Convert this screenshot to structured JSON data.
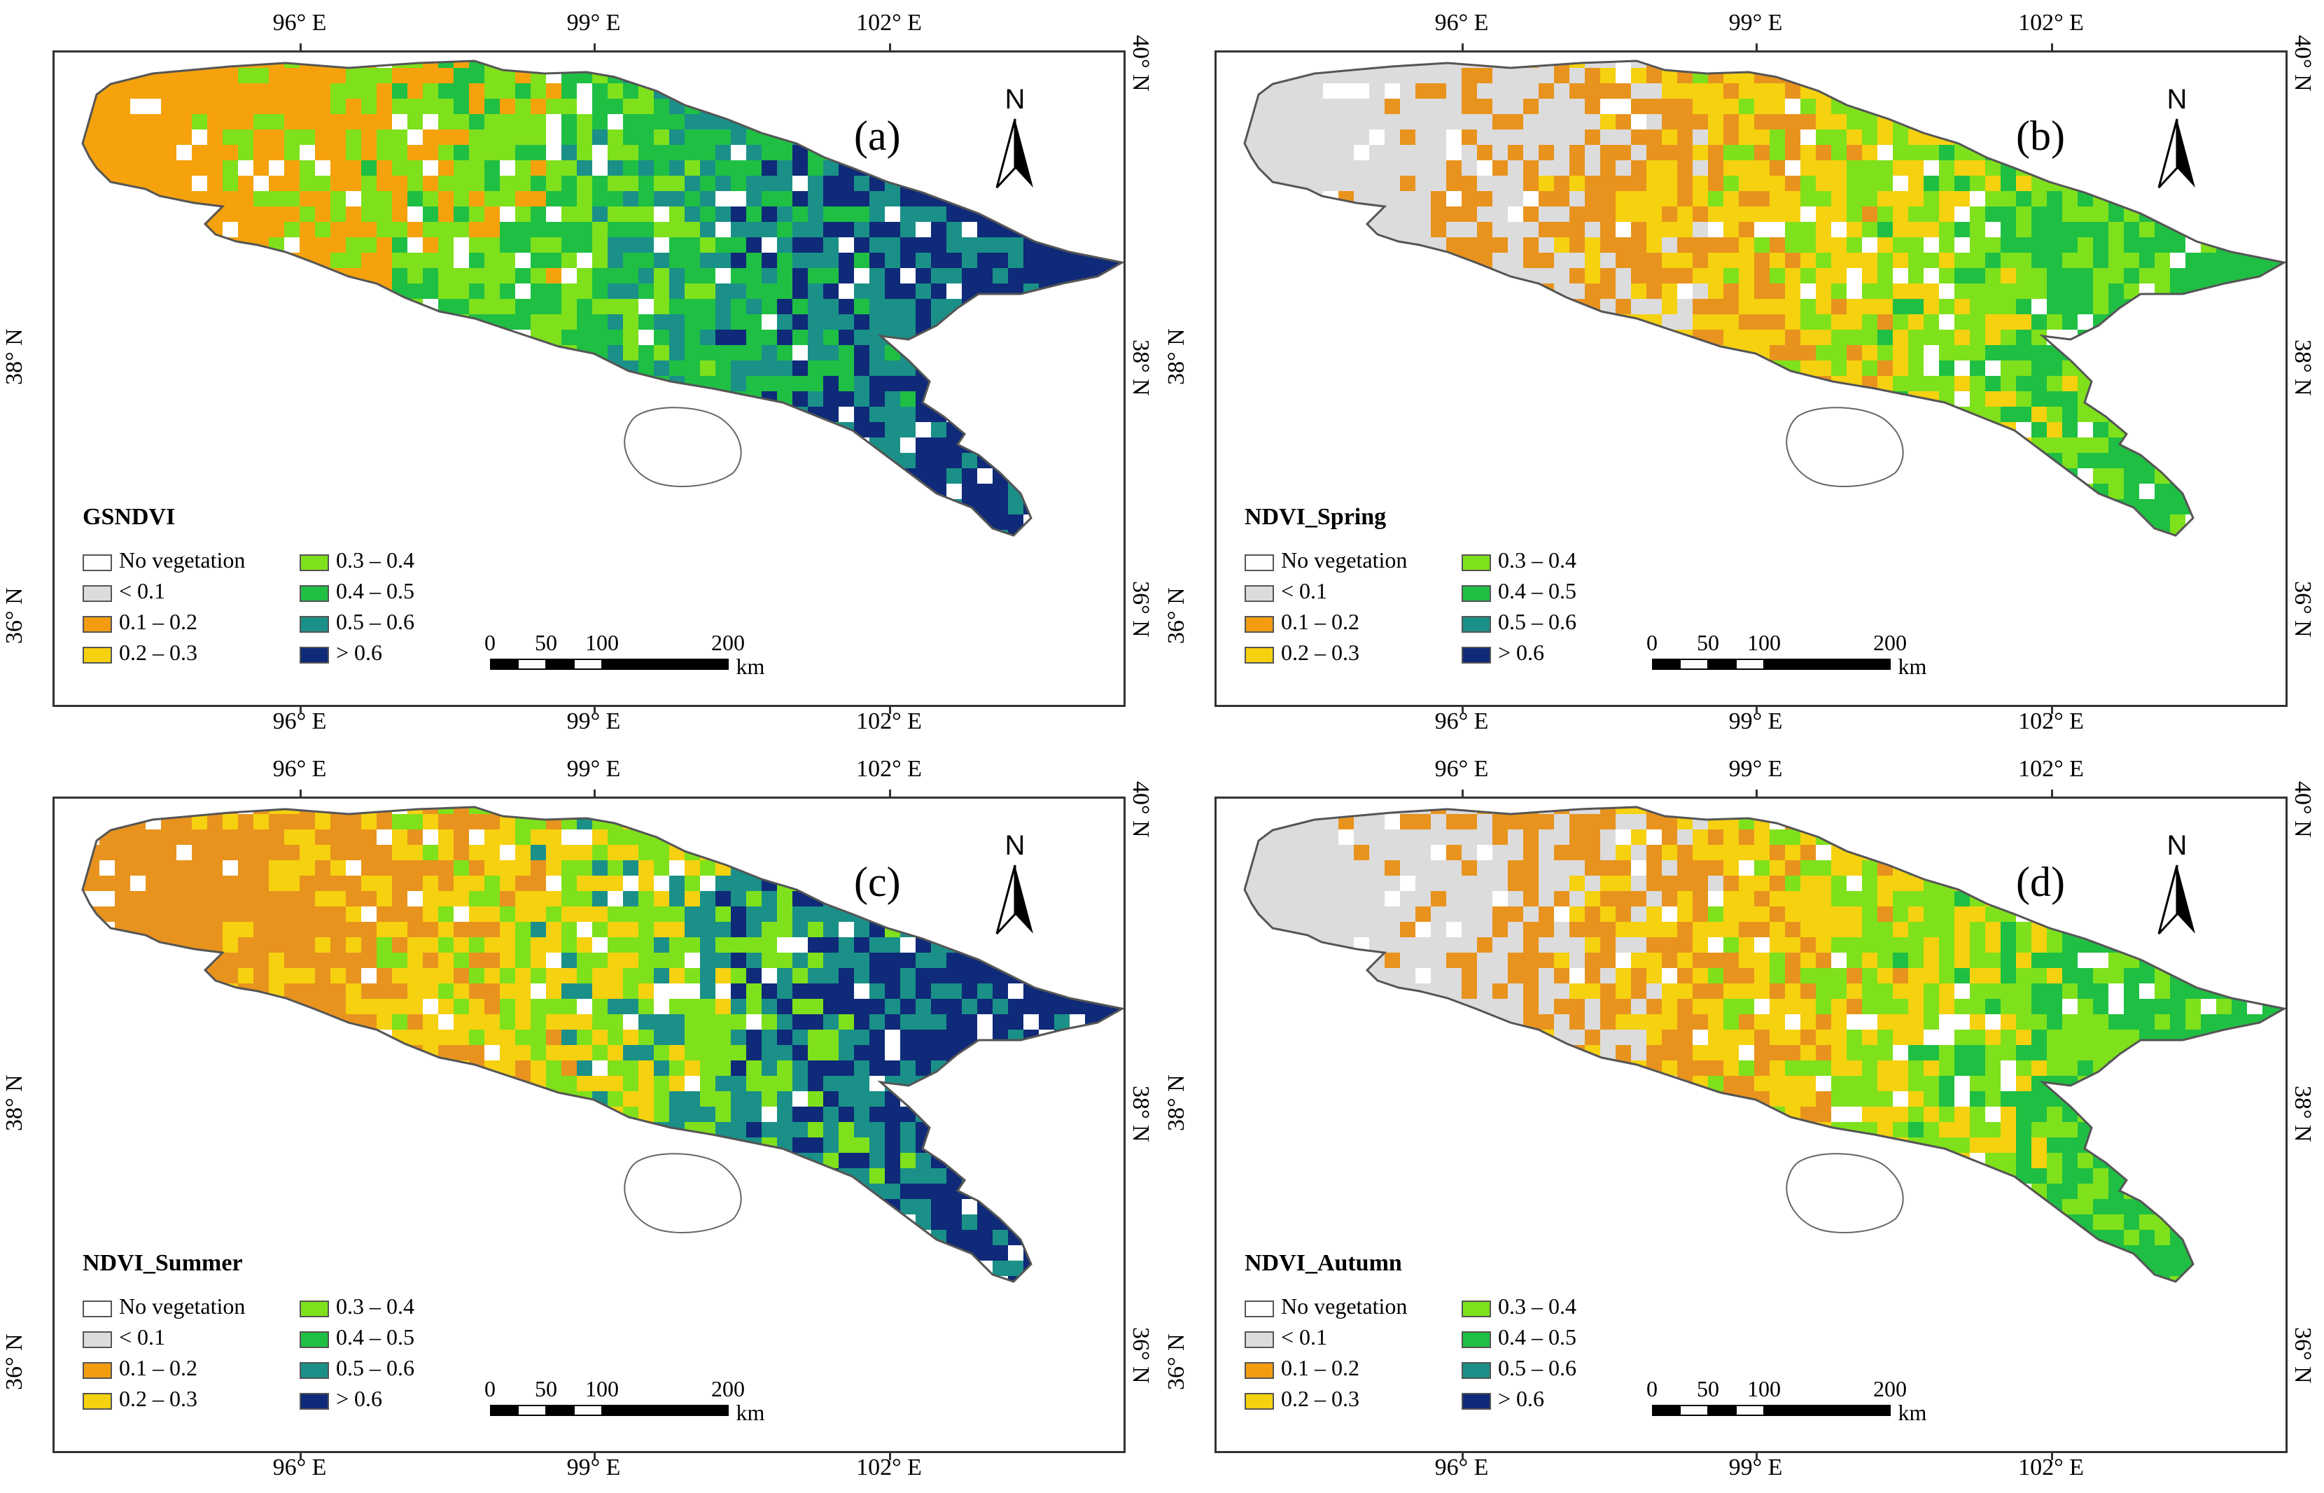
{
  "axes": {
    "lon_labels": [
      "96° E",
      "99° E",
      "102° E"
    ],
    "lat_labels": [
      "36° N",
      "38° N",
      "40° N"
    ],
    "left_lat_labels": [
      "38° N",
      "36° N"
    ],
    "right_lat_labels": [
      "40° N",
      "38° N",
      "36° N"
    ]
  },
  "north_label": "N",
  "legend": {
    "items": [
      {
        "label": "No vegetation",
        "color": "#ffffff"
      },
      {
        "label": "< 0.1",
        "color": "#dcdcdc"
      },
      {
        "label": "0.1 – 0.2",
        "color": "#f39c12"
      },
      {
        "label": "0.2 – 0.3",
        "color": "#f5d10f"
      },
      {
        "label": "0.3 – 0.4",
        "color": "#7fe11b"
      },
      {
        "label": "0.4 – 0.5",
        "color": "#1fbf44"
      },
      {
        "label": "0.5 – 0.6",
        "color": "#1a9088"
      },
      {
        "label": "> 0.6",
        "color": "#0e2a78"
      }
    ]
  },
  "scale": {
    "ticks": [
      "0",
      "50",
      "100",
      "200"
    ],
    "unit": "km"
  },
  "panels": [
    {
      "label": "(a)",
      "title": "GSNDVI",
      "palette": [
        "#f5a20c",
        "#7fe11b",
        "#1fbf44",
        "#1a9088",
        "#0e2a78"
      ]
    },
    {
      "label": "(b)",
      "title": "NDVI_Spring",
      "palette": [
        "#dcdcdc",
        "#e8931e",
        "#f5d10f",
        "#7fe11b",
        "#1fbf44"
      ]
    },
    {
      "label": "(c)",
      "title": "NDVI_Summer",
      "palette": [
        "#e8931e",
        "#f5d10f",
        "#7fe11b",
        "#1a9088",
        "#0e2a78"
      ]
    },
    {
      "label": "(d)",
      "title": "NDVI_Autumn",
      "palette": [
        "#dcdcdc",
        "#e8931e",
        "#f5d10f",
        "#7fe11b",
        "#1fbf44"
      ]
    }
  ]
}
